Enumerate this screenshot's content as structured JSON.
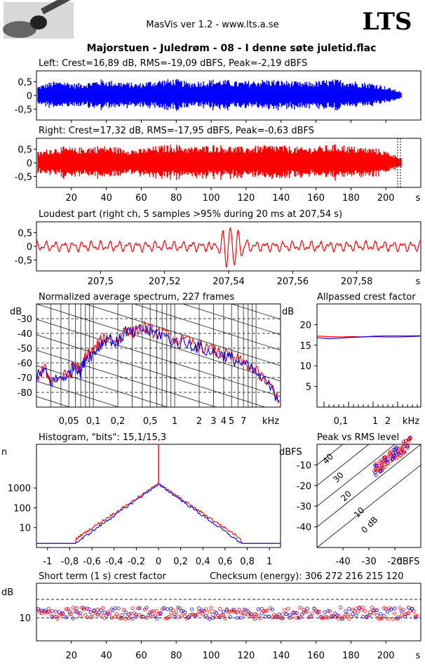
{
  "header": {
    "app_title": "MasVis ver 1.2 - www.lts.a.se",
    "logo_text": "LTS",
    "track_title": "Majorstuen - Juledrøm - 08 - I denne søte juletid.flac"
  },
  "colors": {
    "left": "#0000ff",
    "right": "#ff0000",
    "grid": "#000000"
  },
  "chart_data": [
    {
      "id": "left-waveform",
      "type": "area",
      "title": "Left: Crest=16,89 dB, RMS=-19,09 dBFS, Peak=-2,19 dBFS",
      "ylim": [
        -0.9,
        0.9
      ],
      "yticks": [
        "0,5",
        "0",
        "-0,5"
      ],
      "xlim": [
        0,
        220
      ],
      "envelope_peak": [
        0.35,
        0.5,
        0.55,
        0.45,
        0.5,
        0.6,
        0.55,
        0.5,
        0.45,
        0.55,
        0.6,
        0.62,
        0.5,
        0.55,
        0.6,
        0.58,
        0.52,
        0.55,
        0.6,
        0.58,
        0.55,
        0.5,
        0.52,
        0.58,
        0.6,
        0.55,
        0.5,
        0.45,
        0.3,
        0.15
      ]
    },
    {
      "id": "right-waveform",
      "type": "area",
      "title": "Right: Crest=17,32 dB, RMS=-17,95 dBFS, Peak=-0,63 dBFS",
      "ylim": [
        -0.9,
        0.9
      ],
      "yticks": [
        "0,5",
        "0",
        "-0,5"
      ],
      "xlim": [
        0,
        220
      ],
      "xticks": [
        "20",
        "40",
        "60",
        "80",
        "100",
        "120",
        "140",
        "160",
        "180",
        "200",
        "s"
      ],
      "envelope_peak": [
        0.4,
        0.55,
        0.6,
        0.55,
        0.6,
        0.65,
        0.6,
        0.55,
        0.5,
        0.6,
        0.65,
        0.7,
        0.6,
        0.62,
        0.68,
        0.65,
        0.6,
        0.62,
        0.65,
        0.68,
        0.62,
        0.58,
        0.6,
        0.65,
        0.7,
        0.62,
        0.58,
        0.55,
        0.4,
        0.2
      ],
      "marker_x": 207.54
    },
    {
      "id": "loudest-part",
      "type": "line",
      "title": "Loudest part (right ch, 5 samples >95% during 20 ms at 207,54 s)",
      "ylim": [
        -0.9,
        0.9
      ],
      "yticks": [
        "0,5",
        "0",
        "-0,5"
      ],
      "xlim": [
        207.48,
        207.6
      ],
      "xticks": [
        "207,5",
        "207,52",
        "207,54",
        "207,56",
        "207,58",
        "s"
      ]
    },
    {
      "id": "avg-spectrum",
      "type": "line",
      "title": "Normalized average spectrum, 227 frames",
      "ylabel": "dB",
      "yticks": [
        "-30",
        "-40",
        "-50",
        "-60",
        "-70",
        "-80"
      ],
      "ylim": [
        -90,
        -20
      ],
      "xticks": [
        "0,05",
        "0,1",
        "0,2",
        "0,5",
        "1",
        "2",
        "3",
        "4",
        "5",
        "7",
        "kHz"
      ],
      "xlog_range_khz": [
        0.02,
        20
      ],
      "series": [
        {
          "color": "#ff0000",
          "points": [
            [
              0.02,
              -70
            ],
            [
              0.025,
              -64
            ],
            [
              0.03,
              -72
            ],
            [
              0.04,
              -70
            ],
            [
              0.05,
              -68
            ],
            [
              0.06,
              -60
            ],
            [
              0.07,
              -66
            ],
            [
              0.08,
              -55
            ],
            [
              0.1,
              -52
            ],
            [
              0.12,
              -46
            ],
            [
              0.15,
              -42
            ],
            [
              0.2,
              -45
            ],
            [
              0.25,
              -36
            ],
            [
              0.3,
              -40
            ],
            [
              0.4,
              -35
            ],
            [
              0.5,
              -38
            ],
            [
              0.7,
              -40
            ],
            [
              1,
              -44
            ],
            [
              1.5,
              -46
            ],
            [
              2,
              -48
            ],
            [
              3,
              -52
            ],
            [
              4,
              -54
            ],
            [
              5,
              -56
            ],
            [
              7,
              -60
            ],
            [
              10,
              -66
            ],
            [
              15,
              -76
            ],
            [
              20,
              -86
            ]
          ]
        },
        {
          "color": "#0000ff",
          "points": [
            [
              0.02,
              -70
            ],
            [
              0.025,
              -65
            ],
            [
              0.03,
              -73
            ],
            [
              0.04,
              -70
            ],
            [
              0.05,
              -68
            ],
            [
              0.06,
              -61
            ],
            [
              0.07,
              -67
            ],
            [
              0.08,
              -56
            ],
            [
              0.1,
              -54
            ],
            [
              0.12,
              -48
            ],
            [
              0.15,
              -43
            ],
            [
              0.2,
              -47
            ],
            [
              0.25,
              -38
            ],
            [
              0.3,
              -41
            ],
            [
              0.4,
              -37
            ],
            [
              0.5,
              -39
            ],
            [
              0.7,
              -41
            ],
            [
              1,
              -46
            ],
            [
              1.5,
              -47
            ],
            [
              2,
              -50
            ],
            [
              3,
              -53
            ],
            [
              4,
              -55
            ],
            [
              5,
              -57
            ],
            [
              7,
              -61
            ],
            [
              10,
              -67
            ],
            [
              15,
              -77
            ],
            [
              20,
              -86
            ]
          ]
        }
      ]
    },
    {
      "id": "allpass-crest",
      "type": "line",
      "title": "Allpassed crest factor",
      "ylabel": "dB",
      "yticks": [
        "20",
        "15",
        "10",
        "5"
      ],
      "ylim": [
        0,
        25
      ],
      "xticks": [
        "0,1",
        "1",
        "2",
        "kHz"
      ],
      "series": [
        {
          "color": "#ff0000",
          "values": [
            17.2,
            17.1,
            17.0,
            17.1,
            17.0,
            17.2,
            17.3,
            17.3,
            17.3,
            17.3
          ]
        },
        {
          "color": "#0000ff",
          "values": [
            16.8,
            16.6,
            16.7,
            16.9,
            17.0,
            17.1,
            17.0,
            17.0,
            17.1,
            17.2
          ]
        }
      ]
    },
    {
      "id": "histogram",
      "type": "line",
      "title": "Histogram, \"bits\": 15,1/15,3",
      "ylabel": "n",
      "yticks": [
        "1000",
        "100",
        "10"
      ],
      "xticks": [
        "-1",
        "-0,8",
        "-0,6",
        "-0,4",
        "-0,2",
        "0",
        "0,2",
        "0,4",
        "0,6",
        "0,8",
        "1"
      ],
      "xlim": [
        -1.1,
        1.1
      ]
    },
    {
      "id": "peak-vs-rms",
      "type": "scatter",
      "title": "Peak vs RMS level",
      "ylabel": "dBFS",
      "xlabel": "dBFS",
      "yticks": [
        "-10",
        "-20",
        "-30",
        "-40"
      ],
      "xticks": [
        "-40",
        "-30",
        "-20",
        "dBFS"
      ],
      "diag_labels": [
        "40",
        "30",
        "20",
        "10",
        "0 dB"
      ],
      "xlim": [
        -50,
        -10
      ],
      "ylim": [
        -50,
        0
      ]
    },
    {
      "id": "short-term-crest",
      "type": "scatter",
      "title": "Short term (1 s) crest factor",
      "checksum": "Checksum (energy):   306 272 216 215 120",
      "ylabel": "dB",
      "yticks": [
        "10"
      ],
      "xticks": [
        "20",
        "40",
        "60",
        "80",
        "100",
        "120",
        "140",
        "160",
        "180",
        "200",
        "s"
      ],
      "xlim": [
        0,
        220
      ]
    }
  ]
}
